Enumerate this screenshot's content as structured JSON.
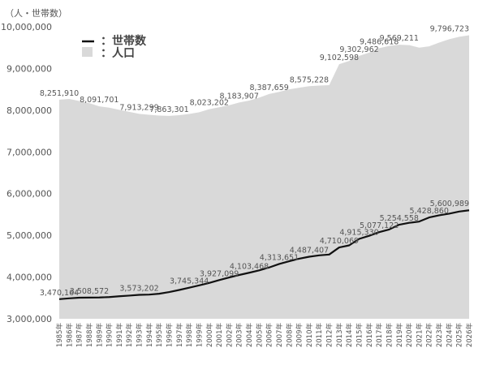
{
  "chart_data": {
    "type": "area",
    "title": "",
    "unit_label": "（人・世帯数）",
    "xlabel": "",
    "ylabel": "（人・世帯数）",
    "ylim": [
      3000000,
      10000000
    ],
    "yticks": [
      {
        "value": 10000000,
        "label": "10,000,000"
      },
      {
        "value": 9000000,
        "label": "9,000,000"
      },
      {
        "value": 8000000,
        "label": "8,000,000"
      },
      {
        "value": 7000000,
        "label": "7,000,000"
      },
      {
        "value": 6000000,
        "label": "6,000,000"
      },
      {
        "value": 5000000,
        "label": "5,000,000"
      },
      {
        "value": 4000000,
        "label": "4,000,000"
      },
      {
        "value": 3000000,
        "label": "3,000,000"
      }
    ],
    "grid": false,
    "legend_position": "top-left inside",
    "categories": [
      "1985年",
      "1986年",
      "1987年",
      "1988年",
      "1989年",
      "1990年",
      "1991年",
      "1992年",
      "1993年",
      "1994年",
      "1995年",
      "1996年",
      "1997年",
      "1998年",
      "1999年",
      "2000年",
      "2001年",
      "2002年",
      "2003年",
      "2004年",
      "2005年",
      "2006年",
      "2007年",
      "2008年",
      "2009年",
      "2010年",
      "2011年",
      "2012年",
      "2013年",
      "2014年",
      "2015年",
      "2016年",
      "2017年",
      "2018年",
      "2019年",
      "2020年",
      "2021年",
      "2022年",
      "2023年",
      "2024年",
      "2025年",
      "2026年"
    ],
    "series": [
      {
        "name": "人口",
        "type": "area",
        "color": "#d9d9d9",
        "values": [
          8251910,
          8270000,
          8220000,
          8170000,
          8091701,
          8060000,
          8010000,
          7960000,
          7913299,
          7890000,
          7870000,
          7863301,
          7880000,
          7910000,
          7950000,
          8023202,
          8070000,
          8120000,
          8183907,
          8230000,
          8300000,
          8387659,
          8440000,
          8500000,
          8540000,
          8575228,
          8590000,
          8600000,
          9102598,
          9180000,
          9302962,
          9380000,
          9486618,
          9540000,
          9569211,
          9560000,
          9500000,
          9530000,
          9620000,
          9700000,
          9760000,
          9796723
        ],
        "labels": [
          {
            "index": 0,
            "text": "8,251,910"
          },
          {
            "index": 4,
            "text": "8,091,701"
          },
          {
            "index": 8,
            "text": "7,913,299"
          },
          {
            "index": 11,
            "text": "7,863,301"
          },
          {
            "index": 15,
            "text": "8,023,202"
          },
          {
            "index": 18,
            "text": "8,183,907"
          },
          {
            "index": 21,
            "text": "8,387,659"
          },
          {
            "index": 25,
            "text": "8,575,228"
          },
          {
            "index": 28,
            "text": "9,102,598"
          },
          {
            "index": 30,
            "text": "9,302,962"
          },
          {
            "index": 32,
            "text": "9,486,618"
          },
          {
            "index": 34,
            "text": "9,569,211"
          },
          {
            "index": 41,
            "text": "9,796,723"
          }
        ]
      },
      {
        "name": "世帯数",
        "type": "line",
        "color": "#111111",
        "values": [
          3470164,
          3490000,
          3505000,
          3508572,
          3510000,
          3520000,
          3540000,
          3555000,
          3573202,
          3580000,
          3600000,
          3640000,
          3690000,
          3745344,
          3800000,
          3860000,
          3927099,
          3990000,
          4050000,
          4103468,
          4160000,
          4230000,
          4313651,
          4380000,
          4440000,
          4487407,
          4520000,
          4540000,
          4710069,
          4760000,
          4915330,
          4990000,
          5077122,
          5140000,
          5254558,
          5300000,
          5330000,
          5428860,
          5480000,
          5520000,
          5570000,
          5600989
        ],
        "labels": [
          {
            "index": 0,
            "text": "3,470,164"
          },
          {
            "index": 3,
            "text": "3,508,572"
          },
          {
            "index": 8,
            "text": "3,573,202"
          },
          {
            "index": 13,
            "text": "3,745,344"
          },
          {
            "index": 16,
            "text": "3,927,099"
          },
          {
            "index": 19,
            "text": "4,103,468"
          },
          {
            "index": 22,
            "text": "4,313,651"
          },
          {
            "index": 25,
            "text": "4,487,407"
          },
          {
            "index": 28,
            "text": "4,710,069"
          },
          {
            "index": 30,
            "text": "4,915,330"
          },
          {
            "index": 32,
            "text": "5,077,122"
          },
          {
            "index": 34,
            "text": "5,254,558"
          },
          {
            "index": 37,
            "text": "5,428,860"
          },
          {
            "index": 41,
            "text": "5,600,989"
          }
        ]
      }
    ],
    "legend": [
      {
        "name": "世帯数",
        "symbol": "line",
        "label": "：世帯数"
      },
      {
        "name": "人口",
        "symbol": "box",
        "label": "：人口"
      }
    ]
  }
}
